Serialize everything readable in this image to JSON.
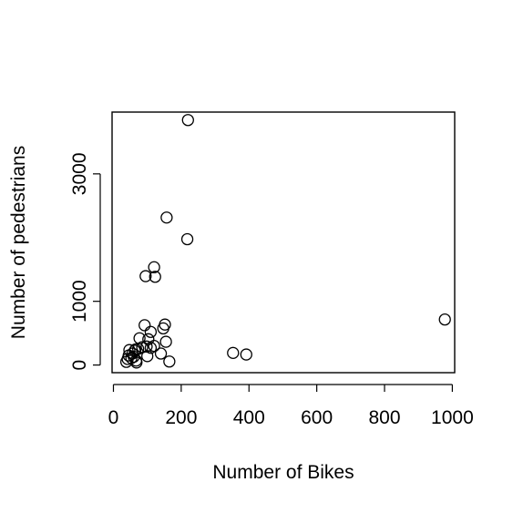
{
  "chart_data": {
    "type": "scatter",
    "title": "",
    "xlabel": "Number of Bikes",
    "ylabel": "Number of pedestrians",
    "xlim": [
      -4,
      1007
    ],
    "ylim": [
      -120,
      3970
    ],
    "xticks": [
      0,
      200,
      400,
      600,
      800,
      1000
    ],
    "yticks": [
      0,
      1000,
      3000
    ],
    "xtick_labels": [
      "0",
      "200",
      "400",
      "600",
      "800",
      "1000"
    ],
    "ytick_labels": [
      "0",
      "1000",
      "3000"
    ],
    "grid": false,
    "legend": "none",
    "marker": "open-circle",
    "points": [
      {
        "x": 220,
        "y": 3845
      },
      {
        "x": 157,
        "y": 2315
      },
      {
        "x": 218,
        "y": 1975
      },
      {
        "x": 120,
        "y": 1535
      },
      {
        "x": 95,
        "y": 1395
      },
      {
        "x": 123,
        "y": 1385
      },
      {
        "x": 978,
        "y": 715
      },
      {
        "x": 152,
        "y": 635
      },
      {
        "x": 92,
        "y": 625
      },
      {
        "x": 147,
        "y": 575
      },
      {
        "x": 110,
        "y": 520
      },
      {
        "x": 77,
        "y": 420
      },
      {
        "x": 103,
        "y": 405
      },
      {
        "x": 155,
        "y": 365
      },
      {
        "x": 120,
        "y": 300
      },
      {
        "x": 98,
        "y": 290
      },
      {
        "x": 85,
        "y": 280
      },
      {
        "x": 110,
        "y": 270
      },
      {
        "x": 73,
        "y": 255
      },
      {
        "x": 65,
        "y": 245
      },
      {
        "x": 47,
        "y": 235
      },
      {
        "x": 63,
        "y": 225
      },
      {
        "x": 353,
        "y": 190
      },
      {
        "x": 56,
        "y": 180
      },
      {
        "x": 140,
        "y": 180
      },
      {
        "x": 392,
        "y": 165
      },
      {
        "x": 45,
        "y": 150
      },
      {
        "x": 100,
        "y": 140
      },
      {
        "x": 60,
        "y": 130
      },
      {
        "x": 53,
        "y": 110
      },
      {
        "x": 42,
        "y": 95
      },
      {
        "x": 67,
        "y": 70
      },
      {
        "x": 165,
        "y": 55
      },
      {
        "x": 38,
        "y": 50
      },
      {
        "x": 68,
        "y": 40
      }
    ]
  }
}
